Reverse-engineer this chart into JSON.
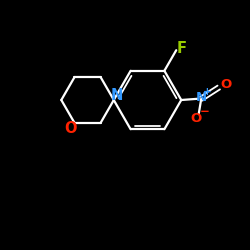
{
  "bg": "#000000",
  "bond_color": "#ffffff",
  "F_color": "#99cc00",
  "N_morph_color": "#3399ff",
  "N_nitro_color": "#3399ff",
  "O_color": "#ff2200",
  "fig_w": 2.5,
  "fig_h": 2.5,
  "dpi": 100,
  "lw": 1.6,
  "lw_thin": 1.3,
  "font_size": 9.5,
  "font_size_small": 6.5,
  "xlim": [
    0,
    10
  ],
  "ylim": [
    0,
    10
  ]
}
